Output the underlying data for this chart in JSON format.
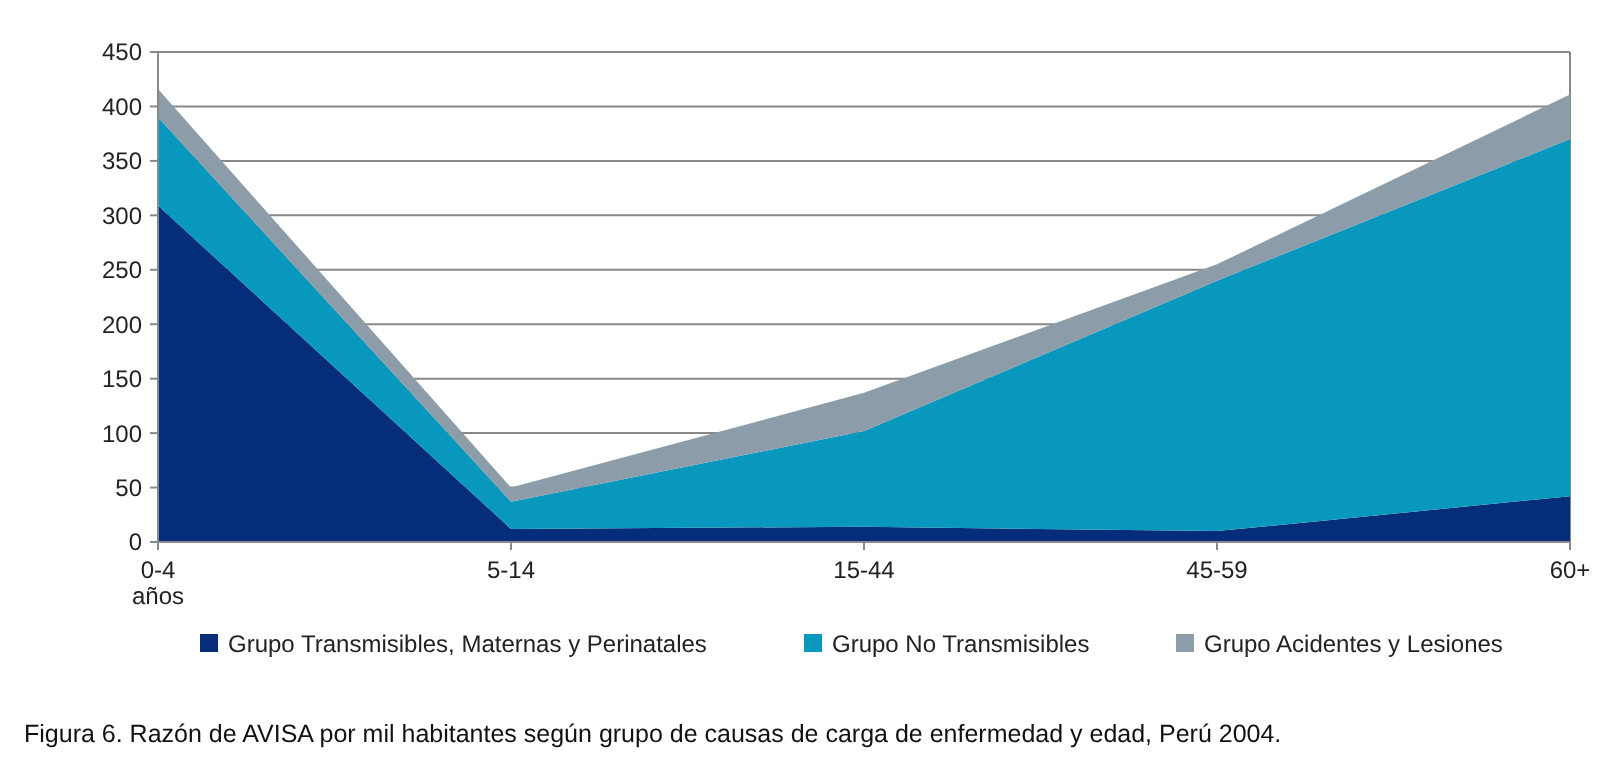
{
  "chart_data": {
    "type": "area",
    "stacked": true,
    "categories": [
      "0-4\naños",
      "5-14",
      "15-44",
      "45-59",
      "60+"
    ],
    "series": [
      {
        "name": "Grupo Transmisibles, Maternas y Perinatales",
        "color": "#062d7a",
        "values": [
          309,
          12,
          14,
          10,
          42
        ]
      },
      {
        "name": "Grupo No Transmisibles",
        "color": "#0898bd",
        "values": [
          81,
          25,
          88,
          230,
          328
        ]
      },
      {
        "name": "Grupo Acidentes y Lesiones",
        "color": "#8c9ca8",
        "values": [
          26,
          13,
          35,
          15,
          41
        ]
      }
    ],
    "ylim": [
      0,
      450
    ],
    "yticks": [
      0,
      50,
      100,
      150,
      200,
      250,
      300,
      350,
      400,
      450
    ],
    "grid": "y",
    "legend": "bottom",
    "annotations": [
      "Figura 6. Razón de AVISA por mil habitantes según grupo de causas de carga de enfermedad y edad, Perú 2004."
    ]
  }
}
